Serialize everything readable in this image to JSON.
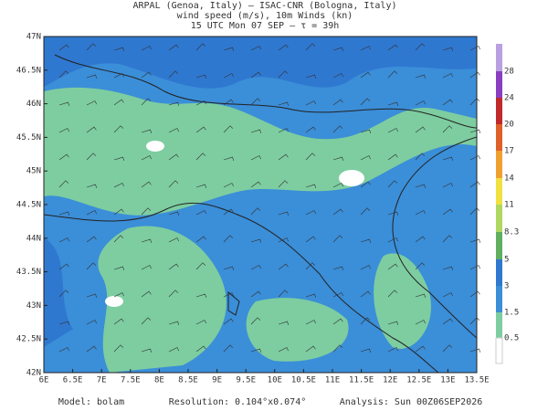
{
  "header": {
    "lines": [
      "ARPAL (Genoa, Italy)  —  ISAC-CNR (Bologna, Italy)",
      "wind speed (m/s), 10m Winds (kn)",
      "15 UTC Mon 07 SEP  —  τ = 39h"
    ]
  },
  "map": {
    "lon_labels": [
      "6E",
      "6.5E",
      "7E",
      "7.5E",
      "8E",
      "8.5E",
      "9E",
      "9.5E",
      "10E",
      "10.5E",
      "11E",
      "11.5E",
      "12E",
      "12.5E",
      "13E",
      "13.5E"
    ],
    "lat_labels": [
      "47N",
      "46.5N",
      "46N",
      "45.5N",
      "45N",
      "44.5N",
      "44N",
      "43.5N",
      "43N",
      "42.5N",
      "42N"
    ]
  },
  "colorbar": {
    "labels": [
      "28",
      "24",
      "20",
      "17",
      "14",
      "11",
      "8.3",
      "5",
      "3",
      "1.5",
      "0.5"
    ]
  },
  "footer": {
    "model": "Model: bolam",
    "resolution": "Resolution: 0.104°x0.074°",
    "analysis": "Analysis: Sun 00Z06SEP2026"
  }
}
